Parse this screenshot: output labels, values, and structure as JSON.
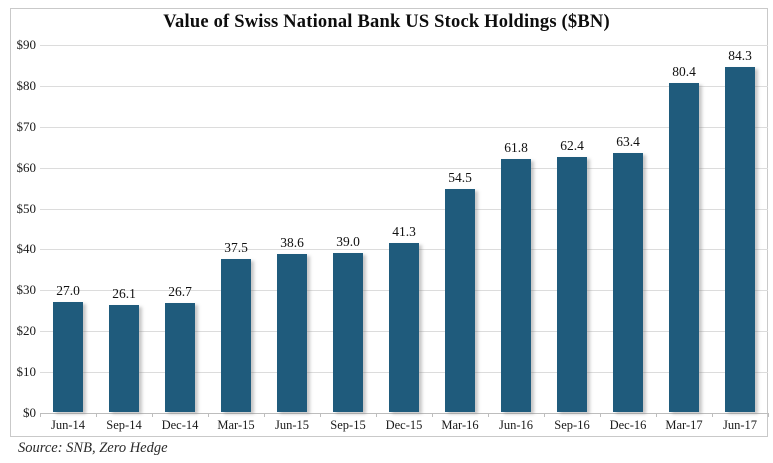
{
  "title": "Value of Swiss National Bank US Stock Holdings ($BN)",
  "source_note": "Source: SNB, Zero Hedge",
  "colors": {
    "bar": "#1f5b7c",
    "grid": "#dcdcdc",
    "axis": "#bdbdbd",
    "frame": "#c9c9c9",
    "text": "#1a1a1a"
  },
  "chart_data": {
    "type": "bar",
    "categories": [
      "Jun-14",
      "Sep-14",
      "Dec-14",
      "Mar-15",
      "Jun-15",
      "Sep-15",
      "Dec-15",
      "Mar-16",
      "Jun-16",
      "Sep-16",
      "Dec-16",
      "Mar-17",
      "Jun-17"
    ],
    "values": [
      27.0,
      26.1,
      26.7,
      37.5,
      38.6,
      39.0,
      41.3,
      54.5,
      61.8,
      62.4,
      63.4,
      80.4,
      84.3
    ],
    "title": "Value of Swiss National Bank US Stock Holdings ($BN)",
    "xlabel": "",
    "ylabel": "",
    "ylim": [
      0,
      90
    ],
    "ytick_step": 10,
    "ytick_prefix": "$",
    "value_label_decimals": 1,
    "grid": true,
    "legend": false,
    "bar_color": "#1f5b7c",
    "source": "Source: SNB, Zero Hedge"
  }
}
